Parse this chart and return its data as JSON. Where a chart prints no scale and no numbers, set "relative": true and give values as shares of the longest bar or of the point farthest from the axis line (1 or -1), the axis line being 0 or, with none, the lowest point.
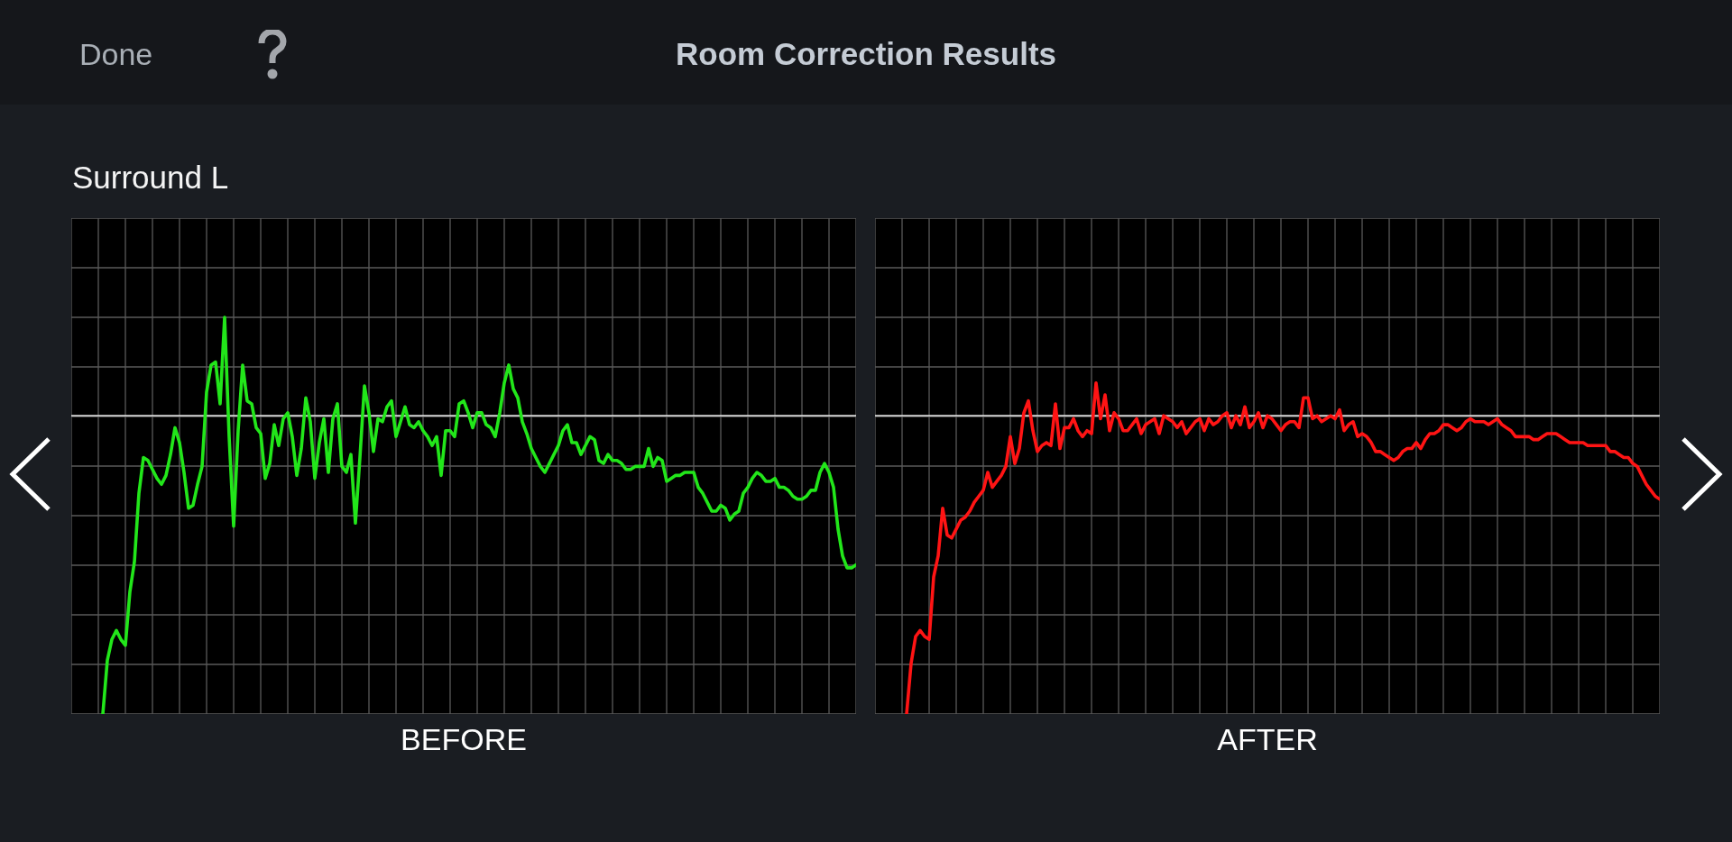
{
  "chart_data": [
    {
      "type": "line",
      "title": "Room Correction Results",
      "subtitle": "Surround L",
      "annotations": [
        "Done"
      ],
      "xlabel": "BEFORE",
      "relative": true,
      "grid": true,
      "marker": "none",
      "line_style": "solid",
      "categories": [
        null,
        null,
        null,
        null,
        null,
        null,
        null,
        null,
        null,
        null,
        null,
        null,
        null,
        null,
        null,
        null,
        null,
        null,
        null,
        null,
        null,
        null,
        null,
        null,
        null,
        null,
        null,
        null,
        null,
        null,
        null,
        null,
        null,
        null,
        null,
        null,
        null,
        null,
        null,
        null,
        null,
        null,
        null,
        null,
        null,
        null,
        null,
        null,
        null,
        null,
        null,
        null,
        null,
        null,
        null,
        null,
        null,
        null,
        null,
        null,
        null,
        null,
        null,
        null,
        null,
        null,
        null,
        null,
        null,
        null,
        null,
        null,
        null,
        null,
        null,
        null,
        null,
        null,
        null,
        null,
        null,
        null,
        null,
        null,
        null,
        null,
        null,
        null,
        null,
        null,
        null,
        null,
        null,
        null,
        null,
        null,
        null,
        null,
        null,
        null,
        null,
        null,
        null,
        null,
        null,
        null,
        null,
        null,
        null,
        null,
        null,
        null,
        null,
        null,
        null,
        null,
        null,
        null,
        null,
        null,
        null,
        null,
        null,
        null,
        null,
        null,
        null,
        null,
        null,
        null,
        null,
        null,
        null,
        null,
        null,
        null,
        null,
        null,
        null,
        null,
        null,
        null,
        null,
        null,
        null,
        null,
        null,
        null,
        null,
        null,
        null,
        null,
        null,
        null,
        null,
        null,
        null,
        null,
        null,
        null,
        null,
        null,
        null,
        null,
        null,
        null,
        null,
        null,
        null,
        null,
        null,
        null,
        null,
        null,
        null
      ],
      "series": [
        {
          "color": "#22e61a",
          "values": [
            null,
            null,
            null,
            null,
            null,
            null,
            null,
            -1,
            -0.82,
            -0.75,
            -0.72,
            -0.75,
            -0.77,
            -0.59,
            -0.49,
            -0.26,
            -0.14,
            -0.15,
            -0.18,
            -0.21,
            -0.23,
            -0.2,
            -0.13,
            -0.04,
            -0.09,
            -0.19,
            -0.31,
            -0.3,
            -0.23,
            -0.17,
            0.08,
            0.17,
            0.18,
            0.04,
            0.33,
            -0.07,
            -0.37,
            -0.05,
            0.17,
            0.05,
            0.04,
            -0.04,
            -0.06,
            -0.21,
            -0.16,
            -0.03,
            -0.1,
            -0.01,
            0.01,
            -0.07,
            -0.2,
            -0.11,
            0.06,
            -0.02,
            -0.21,
            -0.09,
            -0.01,
            -0.19,
            -0.01,
            0.04,
            -0.17,
            -0.19,
            -0.13,
            -0.36,
            -0.14,
            0.1,
            0.01,
            -0.12,
            -0.01,
            -0.02,
            0.03,
            0.05,
            -0.07,
            -0.02,
            0.03,
            -0.03,
            -0.04,
            -0.02,
            -0.05,
            -0.07,
            -0.1,
            -0.07,
            -0.2,
            -0.05,
            -0.05,
            -0.07,
            0.04,
            0.05,
            0.01,
            -0.04,
            0.01,
            0.01,
            -0.03,
            -0.04,
            -0.07,
            0.01,
            0.11,
            0.17,
            0.09,
            0.06,
            -0.02,
            -0.06,
            -0.11,
            -0.14,
            -0.17,
            -0.19,
            -0.16,
            -0.13,
            -0.1,
            -0.05,
            -0.03,
            -0.09,
            -0.09,
            -0.13,
            -0.1,
            -0.07,
            -0.08,
            -0.15,
            -0.16,
            -0.13,
            -0.15,
            -0.15,
            -0.16,
            -0.18,
            -0.18,
            -0.17,
            -0.17,
            -0.17,
            -0.11,
            -0.17,
            -0.14,
            -0.15,
            -0.22,
            -0.21,
            -0.2,
            -0.2,
            -0.19,
            -0.19,
            -0.19,
            -0.24,
            -0.26,
            -0.29,
            -0.32,
            -0.32,
            -0.3,
            -0.31,
            -0.35,
            -0.33,
            -0.32,
            -0.26,
            -0.24,
            -0.21,
            -0.19,
            -0.2,
            -0.22,
            -0.22,
            -0.21,
            -0.24,
            -0.24,
            -0.25,
            -0.27,
            -0.28,
            -0.28,
            -0.27,
            -0.25,
            -0.25,
            -0.19,
            -0.16,
            -0.19,
            -0.24,
            -0.38,
            -0.47,
            -0.51,
            -0.51,
            -0.5
          ]
        }
      ]
    },
    {
      "type": "line",
      "xlabel": "AFTER",
      "relative": true,
      "grid": true,
      "marker": "none",
      "line_style": "solid",
      "categories": [
        null,
        null,
        null,
        null,
        null,
        null,
        null,
        null,
        null,
        null,
        null,
        null,
        null,
        null,
        null,
        null,
        null,
        null,
        null,
        null,
        null,
        null,
        null,
        null,
        null,
        null,
        null,
        null,
        null,
        null,
        null,
        null,
        null,
        null,
        null,
        null,
        null,
        null,
        null,
        null,
        null,
        null,
        null,
        null,
        null,
        null,
        null,
        null,
        null,
        null,
        null,
        null,
        null,
        null,
        null,
        null,
        null,
        null,
        null,
        null,
        null,
        null,
        null,
        null,
        null,
        null,
        null,
        null,
        null,
        null,
        null,
        null,
        null,
        null,
        null,
        null,
        null,
        null,
        null,
        null,
        null,
        null,
        null,
        null,
        null,
        null,
        null,
        null,
        null,
        null,
        null,
        null,
        null,
        null,
        null,
        null,
        null,
        null,
        null,
        null,
        null,
        null,
        null,
        null,
        null,
        null,
        null,
        null,
        null,
        null,
        null,
        null,
        null,
        null,
        null,
        null,
        null,
        null,
        null,
        null,
        null,
        null,
        null,
        null,
        null,
        null,
        null,
        null,
        null,
        null,
        null,
        null,
        null,
        null,
        null,
        null,
        null,
        null,
        null,
        null,
        null,
        null,
        null,
        null,
        null,
        null,
        null,
        null,
        null,
        null,
        null,
        null,
        null,
        null,
        null,
        null,
        null,
        null,
        null,
        null,
        null,
        null,
        null,
        null,
        null,
        null,
        null,
        null,
        null,
        null,
        null,
        null,
        null,
        null,
        null
      ],
      "series": [
        {
          "color": "#ff1414",
          "values": [
            null,
            null,
            null,
            null,
            null,
            null,
            null,
            -1,
            -0.83,
            -0.74,
            -0.72,
            -0.74,
            -0.75,
            -0.54,
            -0.47,
            -0.31,
            -0.4,
            -0.41,
            -0.38,
            -0.35,
            -0.34,
            -0.32,
            -0.29,
            -0.27,
            -0.25,
            -0.19,
            -0.24,
            -0.22,
            -0.2,
            -0.17,
            -0.07,
            -0.16,
            -0.11,
            0.01,
            0.05,
            -0.05,
            -0.12,
            -0.1,
            -0.09,
            -0.1,
            0.04,
            -0.11,
            -0.04,
            -0.04,
            -0.01,
            -0.05,
            -0.07,
            -0.05,
            -0.06,
            0.11,
            -0.01,
            0.07,
            -0.05,
            0.01,
            -0.01,
            -0.05,
            -0.05,
            -0.03,
            -0.01,
            -0.06,
            -0.03,
            -0.02,
            -0.01,
            -0.06,
            0,
            -0.01,
            -0.02,
            -0.04,
            -0.02,
            -0.06,
            -0.04,
            -0.02,
            -0.01,
            -0.05,
            -0.01,
            -0.03,
            -0.02,
            0,
            0.01,
            -0.04,
            0,
            -0.03,
            0.03,
            -0.04,
            -0.02,
            0.01,
            -0.04,
            0,
            -0.01,
            -0.03,
            -0.05,
            -0.03,
            -0.02,
            -0.02,
            -0.04,
            0.06,
            0.06,
            -0.01,
            0,
            -0.02,
            -0.01,
            0,
            -0.01,
            0.02,
            -0.05,
            -0.03,
            -0.02,
            -0.07,
            -0.06,
            -0.07,
            -0.09,
            -0.12,
            -0.12,
            -0.13,
            -0.14,
            -0.15,
            -0.14,
            -0.12,
            -0.11,
            -0.11,
            -0.09,
            -0.11,
            -0.08,
            -0.06,
            -0.06,
            -0.05,
            -0.03,
            -0.03,
            -0.04,
            -0.05,
            -0.04,
            -0.02,
            -0.01,
            -0.02,
            -0.02,
            -0.02,
            -0.03,
            -0.02,
            -0.01,
            -0.03,
            -0.04,
            -0.05,
            -0.07,
            -0.07,
            -0.07,
            -0.07,
            -0.08,
            -0.08,
            -0.07,
            -0.06,
            -0.06,
            -0.06,
            -0.07,
            -0.08,
            -0.09,
            -0.09,
            -0.09,
            -0.09,
            -0.1,
            -0.1,
            -0.1,
            -0.1,
            -0.1,
            -0.12,
            -0.12,
            -0.13,
            -0.14,
            -0.14,
            -0.16,
            -0.17,
            -0.2,
            -0.23,
            -0.25,
            -0.27,
            -0.28
          ]
        }
      ]
    }
  ]
}
